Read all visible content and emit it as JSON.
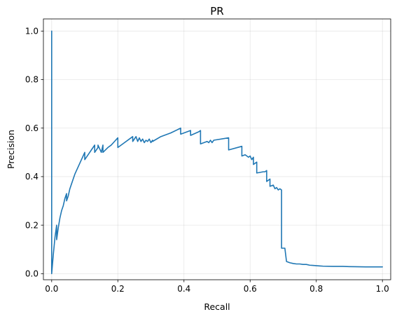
{
  "chart_data": {
    "type": "line",
    "title": "PR",
    "xlabel": "Recall",
    "ylabel": "Precision",
    "xlim": [
      -0.025,
      1.025
    ],
    "ylim": [
      -0.025,
      1.05
    ],
    "xticks": [
      0.0,
      0.2,
      0.4,
      0.6,
      0.8,
      1.0
    ],
    "yticks": [
      0.0,
      0.2,
      0.4,
      0.6,
      0.8,
      1.0
    ],
    "xtick_labels": [
      "0.0",
      "0.2",
      "0.4",
      "0.6",
      "0.8",
      "1.0"
    ],
    "ytick_labels": [
      "0.0",
      "0.2",
      "0.4",
      "0.6",
      "0.8",
      "1.0"
    ],
    "grid": true,
    "colors": {
      "series": "#1f77b4"
    },
    "series": [
      {
        "x": [
          0.0,
          0.0,
          0.0,
          0.005,
          0.01,
          0.015,
          0.015,
          0.02,
          0.025,
          0.03,
          0.035,
          0.04,
          0.045,
          0.045,
          0.05,
          0.055,
          0.06,
          0.07,
          0.08,
          0.09,
          0.1,
          0.1,
          0.11,
          0.12,
          0.13,
          0.13,
          0.14,
          0.14,
          0.15,
          0.155,
          0.155,
          0.17,
          0.18,
          0.19,
          0.2,
          0.2,
          0.22,
          0.24,
          0.245,
          0.245,
          0.255,
          0.26,
          0.265,
          0.27,
          0.275,
          0.28,
          0.285,
          0.29,
          0.295,
          0.3,
          0.305,
          0.305,
          0.33,
          0.36,
          0.39,
          0.39,
          0.41,
          0.42,
          0.42,
          0.445,
          0.45,
          0.45,
          0.47,
          0.475,
          0.48,
          0.485,
          0.49,
          0.535,
          0.535,
          0.575,
          0.575,
          0.585,
          0.595,
          0.6,
          0.605,
          0.61,
          0.61,
          0.62,
          0.62,
          0.64,
          0.645,
          0.65,
          0.65,
          0.66,
          0.66,
          0.67,
          0.675,
          0.68,
          0.685,
          0.69,
          0.695,
          0.695,
          0.705,
          0.71,
          0.72,
          0.73,
          0.74,
          0.75,
          0.76,
          0.77,
          0.78,
          0.79,
          0.8,
          0.81,
          0.82,
          0.85,
          0.88,
          0.9,
          0.95,
          1.0
        ],
        "y": [
          1.0,
          0.0,
          0.0,
          0.08,
          0.15,
          0.2,
          0.14,
          0.19,
          0.23,
          0.26,
          0.28,
          0.31,
          0.33,
          0.3,
          0.32,
          0.35,
          0.37,
          0.41,
          0.44,
          0.47,
          0.5,
          0.47,
          0.49,
          0.51,
          0.53,
          0.5,
          0.52,
          0.53,
          0.5,
          0.53,
          0.5,
          0.52,
          0.53,
          0.545,
          0.56,
          0.52,
          0.54,
          0.56,
          0.565,
          0.545,
          0.565,
          0.545,
          0.56,
          0.545,
          0.555,
          0.54,
          0.55,
          0.545,
          0.555,
          0.54,
          0.55,
          0.545,
          0.565,
          0.58,
          0.6,
          0.575,
          0.585,
          0.59,
          0.57,
          0.585,
          0.59,
          0.535,
          0.545,
          0.54,
          0.55,
          0.54,
          0.55,
          0.56,
          0.51,
          0.525,
          0.485,
          0.49,
          0.48,
          0.485,
          0.47,
          0.48,
          0.45,
          0.46,
          0.415,
          0.42,
          0.42,
          0.425,
          0.38,
          0.39,
          0.36,
          0.365,
          0.35,
          0.355,
          0.345,
          0.35,
          0.345,
          0.105,
          0.105,
          0.05,
          0.045,
          0.042,
          0.04,
          0.04,
          0.038,
          0.038,
          0.035,
          0.034,
          0.033,
          0.032,
          0.031,
          0.03,
          0.03,
          0.029,
          0.028,
          0.028
        ]
      }
    ]
  }
}
